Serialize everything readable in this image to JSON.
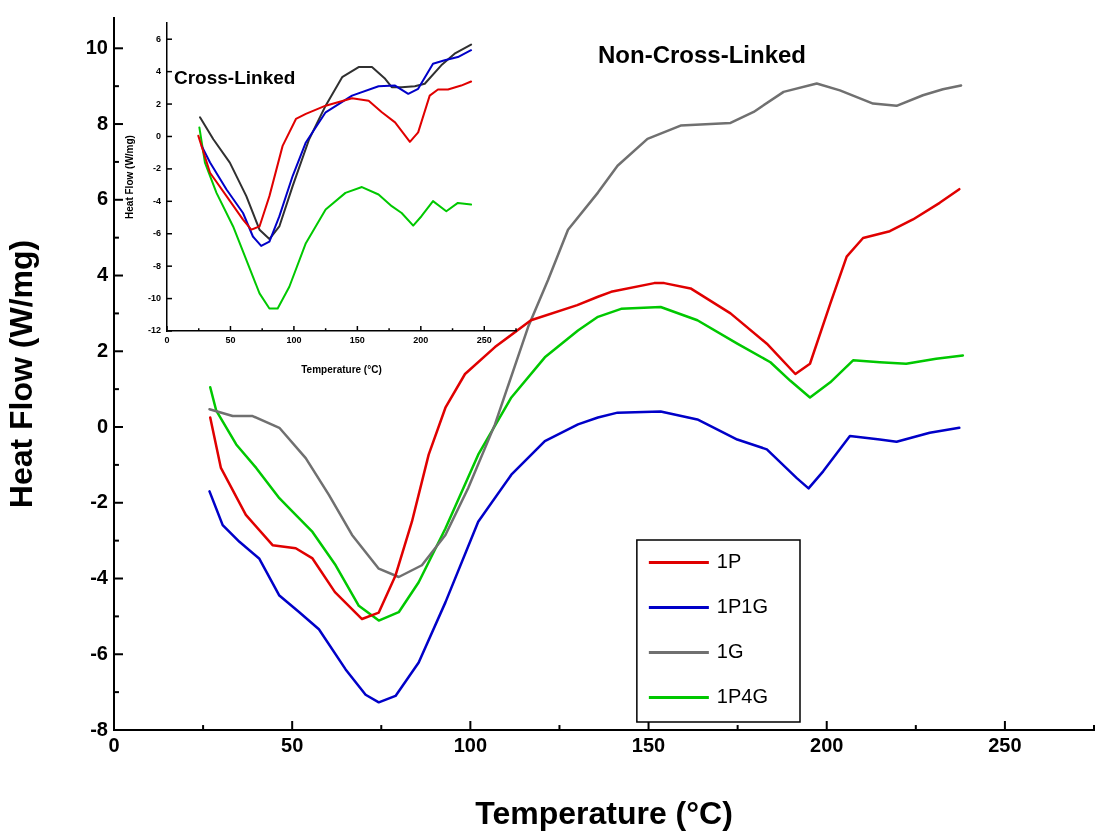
{
  "chart_data": [
    {
      "type": "line",
      "title": "Non-Cross-Linked",
      "xlabel": "Temperature (°C)",
      "ylabel": "Heat Flow (W/mg)",
      "xlim": [
        0,
        275
      ],
      "ylim": [
        -8,
        10.8
      ],
      "xticks": [
        0,
        {
          "value": 25,
          "label": null
        },
        50,
        {
          "value": 75,
          "label": null
        },
        100,
        {
          "value": 125,
          "label": null
        },
        150,
        {
          "value": 175,
          "label": null
        },
        200,
        {
          "value": 225,
          "label": null
        },
        250,
        {
          "value": 275,
          "label": null
        }
      ],
      "yticks": [
        -8,
        {
          "value": -7,
          "label": null
        },
        -6,
        {
          "value": -5,
          "label": null
        },
        -4,
        {
          "value": -3,
          "label": null
        },
        -2,
        {
          "value": -1,
          "label": null
        },
        0,
        {
          "value": 1,
          "label": null
        },
        2,
        {
          "value": 3,
          "label": null
        },
        4,
        {
          "value": 5,
          "label": null
        },
        6,
        {
          "value": 7,
          "label": null
        },
        8,
        {
          "value": 9,
          "label": null
        },
        10
      ],
      "legend": "bottom right",
      "series": [
        {
          "name": "1P",
          "color": "#e00000",
          "x": [
            27,
            30,
            37,
            44.5,
            51,
            55.7,
            62,
            69.6,
            74.3,
            79,
            83.6,
            88.3,
            93,
            98.5,
            106.9,
            117,
            130,
            135.8,
            139.5,
            151.6,
            154.4,
            161.8,
            173,
            183.2,
            191.2,
            195.3,
            201,
            205.6,
            210.2,
            217.7,
            224.2,
            231.7,
            237.2
          ],
          "values": [
            0.25,
            -1.08,
            -2.32,
            -3.12,
            -3.2,
            -3.47,
            -4.36,
            -5.07,
            -4.9,
            -3.92,
            -2.5,
            -0.73,
            0.51,
            1.4,
            2.11,
            2.82,
            3.22,
            3.44,
            3.57,
            3.8,
            3.8,
            3.66,
            3.0,
            2.2,
            1.4,
            1.67,
            3.26,
            4.5,
            4.99,
            5.17,
            5.48,
            5.92,
            6.28
          ]
        },
        {
          "name": "1P1G",
          "color": "#0000c8",
          "x": [
            26.8,
            30.5,
            35.2,
            40.8,
            46.4,
            52,
            57.5,
            65,
            70.6,
            74.3,
            79,
            85.5,
            93,
            102.2,
            111.5,
            120.9,
            130.2,
            135.8,
            141.3,
            153.4,
            163.7,
            174.9,
            183.2,
            191.6,
            194.9,
            199,
            206.5,
            214.9,
            219.6,
            228.9,
            237.2
          ],
          "values": [
            -1.7,
            -2.59,
            -3.03,
            -3.48,
            -4.45,
            -4.89,
            -5.34,
            -6.4,
            -7.07,
            -7.27,
            -7.1,
            -6.22,
            -4.63,
            -2.5,
            -1.26,
            -0.37,
            0.07,
            0.25,
            0.38,
            0.41,
            0.2,
            -0.33,
            -0.59,
            -1.35,
            -1.62,
            -1.17,
            -0.24,
            -0.33,
            -0.39,
            -0.15,
            -0.02
          ]
        },
        {
          "name": "1G",
          "color": "#707070",
          "x": [
            26.8,
            33.3,
            38.9,
            46.4,
            53.8,
            60.3,
            66.8,
            74.3,
            79.9,
            86.4,
            93,
            99.4,
            106.9,
            116.2,
            121.8,
            127.4,
            135.8,
            141.3,
            149.7,
            159,
            173,
            179.5,
            187.9,
            197.2,
            203.7,
            213,
            219.6,
            227,
            232.6,
            237.7
          ],
          "values": [
            0.47,
            0.29,
            0.29,
            -0.02,
            -0.82,
            -1.79,
            -2.85,
            -3.74,
            -3.96,
            -3.65,
            -2.85,
            -1.61,
            0.07,
            2.64,
            3.88,
            5.21,
            6.19,
            6.9,
            7.61,
            7.96,
            8.03,
            8.32,
            8.85,
            9.07,
            8.89,
            8.54,
            8.48,
            8.76,
            8.92,
            9.02
          ]
        },
        {
          "name": "1P4G",
          "color": "#00c800",
          "x": [
            27,
            28.7,
            34.3,
            39.9,
            46.4,
            55.7,
            62.2,
            68.7,
            74.3,
            79.9,
            85.5,
            93,
            102.2,
            111.5,
            120.9,
            130.2,
            135.8,
            142.3,
            153.4,
            163.7,
            174.9,
            184.2,
            189.8,
            195.3,
            201,
            207.4,
            214.9,
            222.3,
            230.7,
            238.2
          ],
          "values": [
            1.05,
            0.43,
            -0.46,
            -1.08,
            -1.88,
            -2.77,
            -3.65,
            -4.72,
            -5.11,
            -4.89,
            -4.1,
            -2.68,
            -0.73,
            0.78,
            1.84,
            2.55,
            2.91,
            3.12,
            3.17,
            2.82,
            2.2,
            1.71,
            1.22,
            0.78,
            1.18,
            1.76,
            1.71,
            1.67,
            1.8,
            1.89
          ]
        }
      ]
    },
    {
      "type": "line",
      "title": "Cross-Linked",
      "xlabel": "Temperature (°C)",
      "ylabel": "Heat Flow (W/mg)",
      "xlim": [
        0,
        275
      ],
      "ylim": [
        -12,
        7
      ],
      "xticks": [
        0,
        {
          "value": 25,
          "label": null
        },
        50,
        {
          "value": 75,
          "label": null
        },
        100,
        {
          "value": 125,
          "label": null
        },
        150,
        {
          "value": 175,
          "label": null
        },
        200,
        {
          "value": 225,
          "label": null
        },
        250,
        {
          "value": 275,
          "label": null
        }
      ],
      "yticks": [
        -12,
        -10,
        -8,
        -6,
        -4,
        -2,
        0,
        2,
        4,
        6
      ],
      "series": [
        {
          "color": "#e00000",
          "x": [
            24.7,
            33.9,
            46.9,
            59.9,
            66.4,
            72.9,
            80.7,
            91.1,
            101.6,
            109.4,
            125,
            145.8,
            158.9,
            169.3,
            179.7,
            191.4,
            197.9,
            207,
            213.5,
            221.4,
            231.8,
            239.6
          ],
          "values": [
            0.04,
            -2.24,
            -3.68,
            -5.13,
            -5.75,
            -5.55,
            -3.68,
            -0.58,
            1.08,
            1.39,
            1.9,
            2.36,
            2.21,
            1.49,
            0.87,
            -0.33,
            0.25,
            2.52,
            2.9,
            2.9,
            3.14,
            3.39
          ]
        },
        {
          "color": "#0000c8",
          "x": [
            27.3,
            33.9,
            46.9,
            59.9,
            67.7,
            74.2,
            80.7,
            88.5,
            99,
            109.4,
            125,
            145.8,
            166.7,
            179.7,
            190.1,
            197.9,
            209.6,
            218.8,
            229.2,
            239.6
          ],
          "values": [
            -0.58,
            -1.61,
            -3.27,
            -4.72,
            -6.17,
            -6.75,
            -6.48,
            -4.93,
            -2.44,
            -0.37,
            1.49,
            2.52,
            3.1,
            3.14,
            2.63,
            2.94,
            4.49,
            4.7,
            4.9,
            5.32
          ]
        },
        {
          "color": "#303030",
          "x": [
            26,
            36.5,
            49.5,
            62.5,
            72.9,
            80.7,
            88.5,
            99,
            112,
            125,
            138,
            151,
            161.5,
            171.9,
            177.1,
            184.9,
            195.3,
            203.1,
            216.1,
            226.6,
            239.6
          ],
          "values": [
            1.18,
            -0.17,
            -1.61,
            -3.68,
            -5.75,
            -6.33,
            -5.55,
            -3.06,
            -0.17,
            1.9,
            3.66,
            4.28,
            4.28,
            3.56,
            3.04,
            3.04,
            3.1,
            3.25,
            4.39,
            5.11,
            5.67
          ]
        },
        {
          "color": "#00c800",
          "x": [
            25.5,
            29.9,
            39,
            52.1,
            62.5,
            72.9,
            80.7,
            87.2,
            96.4,
            109.4,
            125,
            140.6,
            153.6,
            166.7,
            177.1,
            184.9,
            194,
            200.5,
            209.6,
            220.1,
            229.2,
            239.6
          ],
          "values": [
            0.56,
            -1.61,
            -3.48,
            -5.55,
            -7.61,
            -9.68,
            -10.61,
            -10.61,
            -9.27,
            -6.58,
            -4.51,
            -3.48,
            -3.12,
            -3.58,
            -4.3,
            -4.72,
            -5.5,
            -4.92,
            -3.99,
            -4.61,
            -4.1,
            -4.2
          ]
        }
      ]
    }
  ]
}
